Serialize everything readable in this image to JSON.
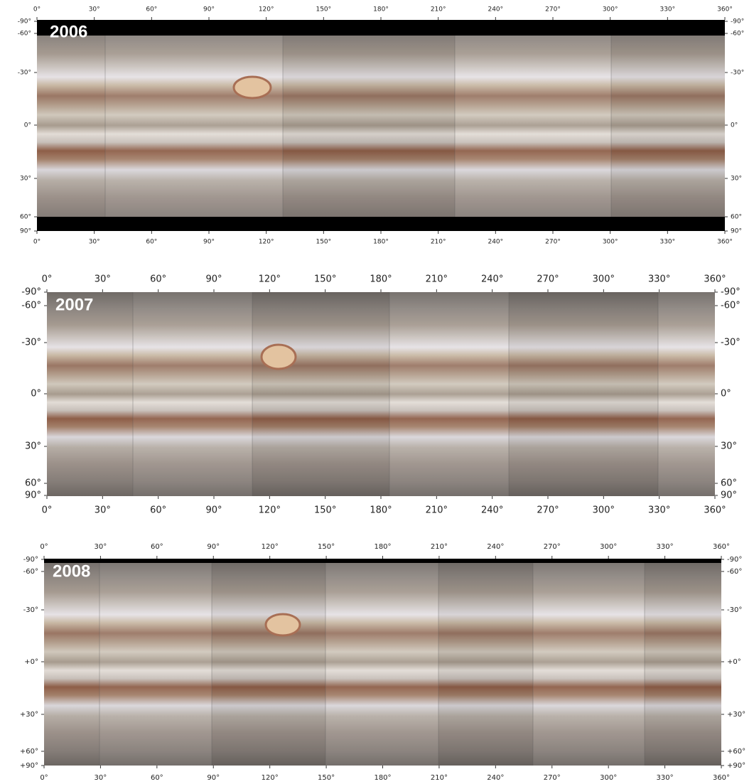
{
  "panels": [
    {
      "year": "2006",
      "x_labels": [
        "0°",
        "30°",
        "60°",
        "90°",
        "120°",
        "150°",
        "180°",
        "210°",
        "240°",
        "270°",
        "300°",
        "330°",
        "360°"
      ],
      "y_labels": [
        "-90°",
        "-60°",
        "-30°",
        "0°",
        "30°",
        "60°",
        "90°"
      ]
    },
    {
      "year": "2007",
      "x_labels": [
        "0°",
        "30°",
        "60°",
        "90°",
        "120°",
        "150°",
        "180°",
        "210°",
        "240°",
        "270°",
        "300°",
        "330°",
        "360°"
      ],
      "y_labels": [
        "-90°",
        "-60°",
        "-30°",
        "0°",
        "30°",
        "60°",
        "90°"
      ]
    },
    {
      "year": "2008",
      "x_labels": [
        "0°",
        "30°",
        "60°",
        "90°",
        "120°",
        "150°",
        "180°",
        "210°",
        "240°",
        "270°",
        "300°",
        "330°",
        "360°"
      ],
      "y_labels": [
        "-90°",
        "-60°",
        "-30°",
        "+0°",
        "+30°",
        "+60°",
        "+90°"
      ]
    }
  ]
}
